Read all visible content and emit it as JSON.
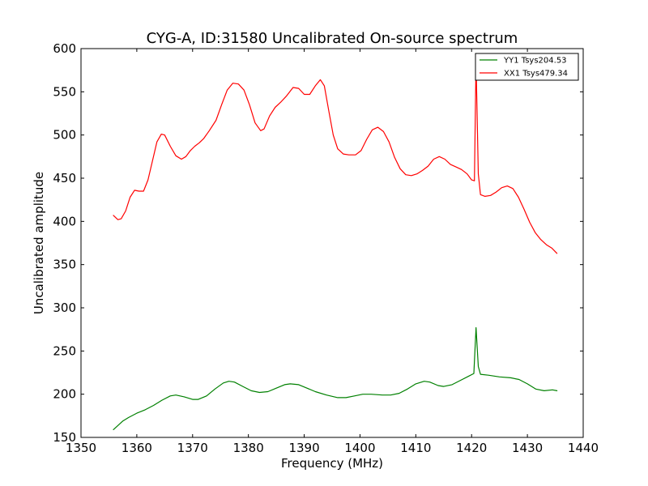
{
  "chart_data": {
    "type": "line",
    "title": "CYG-A, ID:31580 Uncalibrated On-source spectrum",
    "xlabel": "Frequency (MHz)",
    "ylabel": "Uncalibrated amplitude",
    "xlim": [
      1350,
      1440
    ],
    "ylim": [
      150,
      600
    ],
    "xticks": [
      1350,
      1360,
      1370,
      1380,
      1390,
      1400,
      1410,
      1420,
      1430,
      1440
    ],
    "yticks": [
      150,
      200,
      250,
      300,
      350,
      400,
      450,
      500,
      550,
      600
    ],
    "grid": false,
    "legend_position": "top-right",
    "series": [
      {
        "name": "YY1 Tsys204.53",
        "color": "#008000",
        "points": [
          [
            1355.8,
            159
          ],
          [
            1356.5,
            163
          ],
          [
            1357.5,
            169
          ],
          [
            1358.5,
            173
          ],
          [
            1360,
            178
          ],
          [
            1361.5,
            182
          ],
          [
            1363,
            187
          ],
          [
            1364.5,
            193
          ],
          [
            1366,
            198
          ],
          [
            1367,
            199
          ],
          [
            1368.5,
            197
          ],
          [
            1370,
            194
          ],
          [
            1371,
            194
          ],
          [
            1372.5,
            198
          ],
          [
            1374,
            206
          ],
          [
            1375.5,
            213
          ],
          [
            1376.5,
            215
          ],
          [
            1377.5,
            214
          ],
          [
            1379,
            209
          ],
          [
            1380.5,
            204
          ],
          [
            1382,
            202
          ],
          [
            1383.5,
            203
          ],
          [
            1385,
            207
          ],
          [
            1386.5,
            211
          ],
          [
            1387.5,
            212
          ],
          [
            1389,
            211
          ],
          [
            1390.5,
            207
          ],
          [
            1392,
            203
          ],
          [
            1394,
            199
          ],
          [
            1396,
            196
          ],
          [
            1397.5,
            196
          ],
          [
            1399,
            198
          ],
          [
            1400.5,
            200
          ],
          [
            1402,
            200
          ],
          [
            1404,
            199
          ],
          [
            1405.5,
            199
          ],
          [
            1407,
            201
          ],
          [
            1408.5,
            206
          ],
          [
            1410,
            212
          ],
          [
            1411.5,
            215
          ],
          [
            1412.5,
            214
          ],
          [
            1414,
            210
          ],
          [
            1415,
            209
          ],
          [
            1416.5,
            211
          ],
          [
            1418,
            216
          ],
          [
            1419.5,
            221
          ],
          [
            1420.4,
            224
          ],
          [
            1420.8,
            277
          ],
          [
            1421.2,
            232
          ],
          [
            1421.6,
            223
          ],
          [
            1423,
            222
          ],
          [
            1425,
            220
          ],
          [
            1427,
            219
          ],
          [
            1428.5,
            217
          ],
          [
            1430,
            212
          ],
          [
            1431.5,
            206
          ],
          [
            1433,
            204
          ],
          [
            1434.5,
            205
          ],
          [
            1435.3,
            204
          ]
        ]
      },
      {
        "name": "XX1 Tsys479.34",
        "color": "#ff0000",
        "points": [
          [
            1355.8,
            407
          ],
          [
            1356.6,
            402
          ],
          [
            1357.2,
            403
          ],
          [
            1358,
            412
          ],
          [
            1358.8,
            428
          ],
          [
            1359.6,
            436
          ],
          [
            1360.4,
            435
          ],
          [
            1361.2,
            435
          ],
          [
            1362,
            448
          ],
          [
            1362.8,
            470
          ],
          [
            1363.6,
            492
          ],
          [
            1364.4,
            501
          ],
          [
            1365,
            500
          ],
          [
            1366,
            487
          ],
          [
            1367,
            476
          ],
          [
            1368,
            472
          ],
          [
            1368.8,
            475
          ],
          [
            1369.6,
            482
          ],
          [
            1370.4,
            487
          ],
          [
            1371.2,
            491
          ],
          [
            1372,
            496
          ],
          [
            1373,
            505
          ],
          [
            1374.2,
            517
          ],
          [
            1375.2,
            535
          ],
          [
            1376.2,
            552
          ],
          [
            1377.2,
            560
          ],
          [
            1378.2,
            559
          ],
          [
            1379.2,
            552
          ],
          [
            1380.2,
            535
          ],
          [
            1381.2,
            514
          ],
          [
            1382.2,
            505
          ],
          [
            1382.8,
            507
          ],
          [
            1383.8,
            522
          ],
          [
            1384.8,
            532
          ],
          [
            1385.8,
            538
          ],
          [
            1386.8,
            545
          ],
          [
            1388,
            555
          ],
          [
            1389,
            554
          ],
          [
            1390,
            547
          ],
          [
            1391,
            547
          ],
          [
            1392,
            557
          ],
          [
            1392.9,
            564
          ],
          [
            1393.6,
            557
          ],
          [
            1394.4,
            528
          ],
          [
            1395.2,
            500
          ],
          [
            1396,
            484
          ],
          [
            1397,
            478
          ],
          [
            1398,
            477
          ],
          [
            1399.2,
            477
          ],
          [
            1400.2,
            482
          ],
          [
            1401.2,
            495
          ],
          [
            1402.2,
            506
          ],
          [
            1403.2,
            509
          ],
          [
            1404.2,
            504
          ],
          [
            1405.2,
            492
          ],
          [
            1406.2,
            474
          ],
          [
            1407.2,
            461
          ],
          [
            1408.2,
            454
          ],
          [
            1409.2,
            453
          ],
          [
            1410.2,
            455
          ],
          [
            1411.2,
            459
          ],
          [
            1412.2,
            464
          ],
          [
            1413.2,
            472
          ],
          [
            1414.2,
            475
          ],
          [
            1415.2,
            472
          ],
          [
            1416.2,
            466
          ],
          [
            1417.2,
            463
          ],
          [
            1418.2,
            460
          ],
          [
            1419.2,
            455
          ],
          [
            1420,
            448
          ],
          [
            1420.5,
            447
          ],
          [
            1420.8,
            586
          ],
          [
            1421.2,
            455
          ],
          [
            1421.6,
            431
          ],
          [
            1422.4,
            429
          ],
          [
            1423.4,
            430
          ],
          [
            1424.4,
            434
          ],
          [
            1425.4,
            439
          ],
          [
            1426.4,
            441
          ],
          [
            1427.4,
            438
          ],
          [
            1428.4,
            428
          ],
          [
            1429.4,
            414
          ],
          [
            1430.4,
            399
          ],
          [
            1431.4,
            387
          ],
          [
            1432.4,
            379
          ],
          [
            1433.4,
            373
          ],
          [
            1434.4,
            369
          ],
          [
            1435.3,
            363
          ]
        ]
      }
    ]
  }
}
